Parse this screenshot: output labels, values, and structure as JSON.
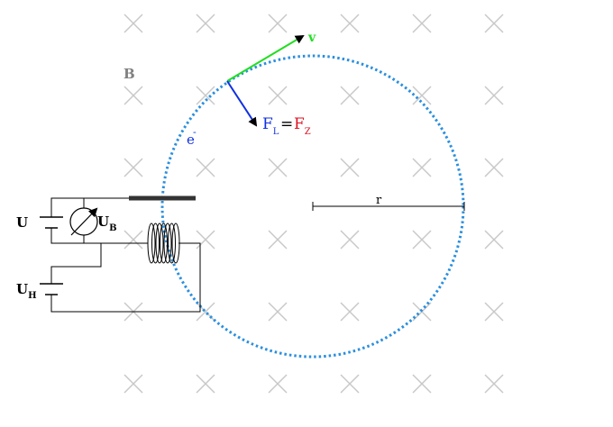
{
  "labels": {
    "field": "B",
    "velocity": "v",
    "electron": "e",
    "electron_charge": "-",
    "lorentz": "F",
    "lorentz_sub": "L",
    "equals": "=",
    "centripetal": "F",
    "centripetal_sub": "Z",
    "radius": "r",
    "voltage": "U",
    "accel_voltage": "U",
    "accel_voltage_sub": "B",
    "heater_voltage": "U",
    "heater_voltage_sub": "H"
  },
  "colors": {
    "field_marks": "#c8c8c8",
    "field_label": "#808080",
    "orbit": "#2b8fde",
    "velocity": "#22dd22",
    "lorentz": "#1030e0",
    "centripetal": "#dd1020",
    "electron": "#1030e0",
    "circuit": "#000000",
    "electrode": "#333333"
  },
  "icons": [
    "field-cross-icon",
    "voltmeter-icon",
    "battery-icon",
    "heating-coil-icon"
  ]
}
